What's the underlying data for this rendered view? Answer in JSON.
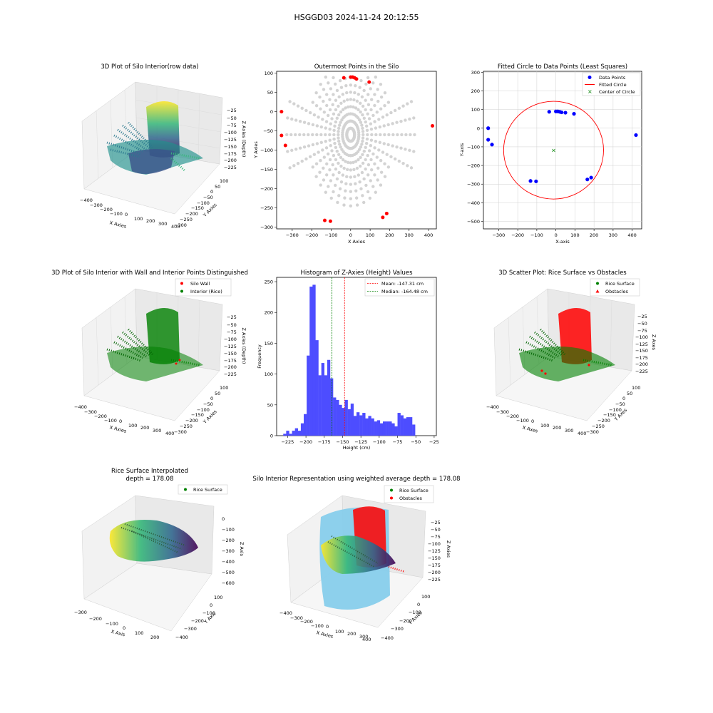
{
  "suptitle": "HSGGD03 2024-11-24 20:12:55",
  "p1": {
    "title": "3D Plot of Silo Interior(row data)",
    "xlabel": "X Axies",
    "ylabel": "Y Axies",
    "zlabel": "Z Axies (Depth)",
    "xticks": [
      "−400",
      "−300",
      "−200",
      "−100",
      "0",
      "100",
      "200",
      "300",
      "400"
    ],
    "yticks": [
      "100",
      "50",
      "0",
      "−50",
      "−100",
      "−150",
      "−200",
      "−250",
      "−300"
    ],
    "zticks": [
      "−25",
      "−50",
      "−75",
      "−100",
      "−125",
      "−150",
      "−175",
      "−200",
      "−225"
    ]
  },
  "p4": {
    "title": "3D Plot of Silo Interior with Wall and Interior Points Distinguished",
    "legend": [
      "Silo Wall",
      "Interior (Rice)"
    ],
    "colors": {
      "wall": "#ff0000",
      "rice": "#008000"
    },
    "xlabel": "X Axies",
    "ylabel": "Y Axies",
    "zlabel": "Z Axies (Depth)",
    "xticks": [
      "−400",
      "−300",
      "−200",
      "−100",
      "0",
      "100",
      "200",
      "300",
      "400"
    ],
    "yticks": [
      "100",
      "50",
      "0",
      "−50",
      "−100",
      "−150",
      "−200",
      "−250",
      "−300"
    ],
    "zticks": [
      "−25",
      "−50",
      "−75",
      "−100",
      "−125",
      "−150",
      "−175",
      "−200",
      "−225"
    ]
  },
  "p6": {
    "title": "3D Scatter Plot: Rice Surface vs Obstacles",
    "legend": [
      "Rice Surface",
      "Obstacles"
    ],
    "xlabel": "X Axes",
    "ylabel": "Y Axes",
    "zlabel": "Z Axes",
    "xticks": [
      "−400",
      "−300",
      "−200",
      "−100",
      "0",
      "100",
      "200",
      "300",
      "400"
    ],
    "yticks": [
      "100",
      "50",
      "0",
      "−50",
      "−100",
      "−150",
      "−200",
      "−250",
      "−300"
    ],
    "zticks": [
      "−25",
      "−50",
      "−75",
      "−100",
      "−125",
      "−150",
      "−175",
      "−200",
      "−225"
    ]
  },
  "p7": {
    "title": "Rice Surface Interpolated",
    "subtitle": "depth = 178.08",
    "legend": [
      "Rice Surface"
    ],
    "xlabel": "X Axis",
    "ylabel": "Y Axis",
    "zlabel": "Z Axis",
    "xticks": [
      "−300",
      "−200",
      "−100",
      "0",
      "100",
      "200"
    ],
    "yticks": [
      "100",
      "0",
      "−100",
      "−200",
      "−300",
      "−400"
    ],
    "zticks": [
      "0",
      "−100",
      "−200",
      "−300",
      "−400",
      "−500",
      "−600"
    ]
  },
  "p8": {
    "title": "Silo Interior Representation using weighted average depth = 178.08",
    "legend": [
      "Rice Surface",
      "Obstacles"
    ],
    "colors": {
      "silo": "#87ceeb"
    },
    "xlabel": "X Axies",
    "ylabel": "Y Axies",
    "zlabel": "Z Axies",
    "xticks": [
      "−400",
      "−300",
      "−200",
      "−100",
      "0",
      "100",
      "200",
      "300",
      "400"
    ],
    "yticks": [
      "100",
      "0",
      "−100",
      "−200",
      "−300",
      "−400"
    ],
    "zticks": [
      "−25",
      "−50",
      "−75",
      "−100",
      "−125",
      "−150",
      "−175",
      "−200",
      "−225"
    ]
  },
  "chart_data": [
    {
      "id": "outermost",
      "type": "scatter",
      "title": "Outermost Points in the Silo",
      "xlabel": "X Axies",
      "ylabel": "Y Axies",
      "xlim": [
        -380,
        440
      ],
      "ylim": [
        -305,
        105
      ],
      "xticks": [
        -300,
        -200,
        -100,
        0,
        100,
        200,
        300,
        400
      ],
      "yticks": [
        -300,
        -250,
        -200,
        -150,
        -100,
        -50,
        0,
        50,
        100
      ],
      "colors": {
        "interior": "#d3d3d3",
        "outermost": "#ff0000"
      },
      "outermost_points": [
        [
          -35,
          88
        ],
        [
          0,
          90
        ],
        [
          10,
          90
        ],
        [
          20,
          88
        ],
        [
          30,
          85
        ],
        [
          95,
          77
        ],
        [
          -355,
          0
        ],
        [
          -355,
          -62
        ],
        [
          -335,
          -88
        ],
        [
          420,
          -37
        ],
        [
          -133,
          -283
        ],
        [
          -104,
          -285
        ],
        [
          165,
          -275
        ],
        [
          185,
          -265
        ]
      ]
    },
    {
      "id": "circlefit",
      "type": "scatter",
      "title": "Fitted Circle to Data Points (Least Squares)",
      "xlabel": "X-axis",
      "ylabel": "Y-axis",
      "xlim": [
        -380,
        450
      ],
      "ylim": [
        -540,
        305
      ],
      "xticks": [
        -300,
        -200,
        -100,
        0,
        100,
        200,
        300,
        400
      ],
      "yticks": [
        -500,
        -400,
        -300,
        -200,
        -100,
        0,
        100,
        200,
        300
      ],
      "legend": [
        "Data Points",
        "Fitted Circle",
        "Center of Circle"
      ],
      "colors": {
        "points": "#0000ff",
        "circle": "#ff0000",
        "center": "#008000"
      },
      "points": [
        [
          -355,
          0
        ],
        [
          -355,
          -62
        ],
        [
          -335,
          -88
        ],
        [
          -35,
          88
        ],
        [
          0,
          90
        ],
        [
          10,
          90
        ],
        [
          20,
          88
        ],
        [
          30,
          85
        ],
        [
          50,
          83
        ],
        [
          95,
          77
        ],
        [
          420,
          -37
        ],
        [
          -133,
          -283
        ],
        [
          -104,
          -285
        ],
        [
          165,
          -275
        ],
        [
          185,
          -265
        ]
      ],
      "center": [
        -12,
        -118
      ],
      "radius": 262
    },
    {
      "id": "histogram",
      "type": "bar",
      "title": "Histogram of Z-Axies (Height) Values",
      "xlabel": "Height (cm)",
      "ylabel": "Frequency",
      "xlim": [
        -240,
        -22
      ],
      "ylim": [
        0,
        257
      ],
      "xticks": [
        -225,
        -200,
        -175,
        -150,
        -125,
        -100,
        -75,
        -50,
        -25
      ],
      "yticks": [
        0,
        50,
        100,
        150,
        200,
        250
      ],
      "bin_start": -231,
      "bin_width": 4,
      "values": [
        3,
        8,
        3,
        8,
        12,
        8,
        20,
        35,
        130,
        242,
        245,
        155,
        98,
        118,
        98,
        123,
        93,
        62,
        58,
        50,
        45,
        58,
        43,
        52,
        32,
        38,
        33,
        37,
        28,
        32,
        28,
        23,
        25,
        20,
        23,
        23,
        23,
        20,
        15,
        37,
        33,
        28,
        30,
        30,
        18
      ],
      "mean": -147.31,
      "median": -164.48,
      "legend": [
        "Mean: -147.31 cm",
        "Median: -164.48 cm"
      ],
      "colors": {
        "bars": "#4d4dff",
        "lines": "#ff0000",
        "median": "#008000"
      }
    }
  ]
}
